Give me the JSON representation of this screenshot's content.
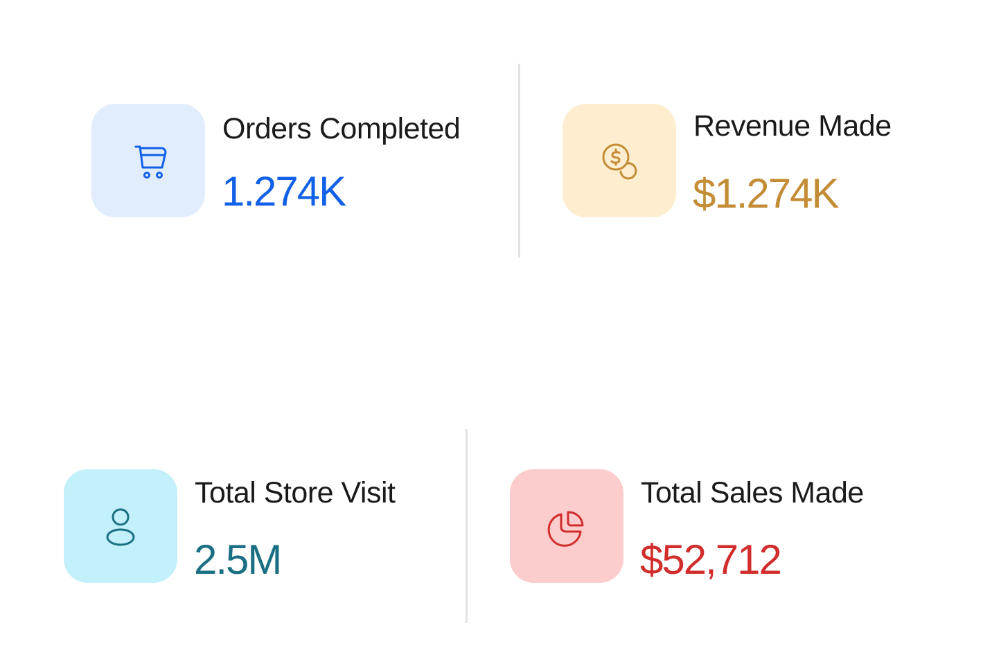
{
  "colors": {
    "orders_accent": "#1160e8",
    "orders_bg": "#e1ecfd",
    "revenue_accent": "#c38c35",
    "revenue_bg": "#feeecf",
    "visits_accent": "#1a6f84",
    "visits_bg": "#c3f1fb",
    "sales_accent": "#d12d2d",
    "sales_bg": "#fdcccc",
    "divider": "#e2e2e2"
  },
  "stats": {
    "orders": {
      "label": "Orders Completed",
      "value": "1.274K",
      "icon": "cart-icon"
    },
    "revenue": {
      "label": "Revenue Made",
      "value": "$1.274K",
      "icon": "coins-icon"
    },
    "visits": {
      "label": "Total Store Visit",
      "value": "2.5M",
      "icon": "user-icon"
    },
    "sales": {
      "label": "Total Sales Made",
      "value": "$52,712",
      "icon": "pie-chart-icon"
    }
  }
}
